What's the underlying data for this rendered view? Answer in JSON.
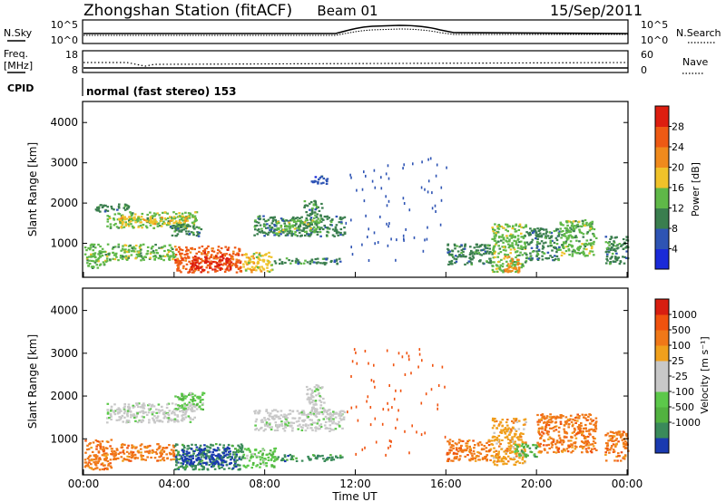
{
  "header": {
    "title": "Zhongshan Station (fitACF)",
    "beam": "Beam 01",
    "date": "15/Sep/2011"
  },
  "top_panel": {
    "left_label": "N.Sky",
    "left_ticks": [
      "10^5",
      "10^0"
    ],
    "right_ticks": [
      "10^5",
      "10^0"
    ],
    "right_label": "N.Search"
  },
  "freq_panel": {
    "left_label_1": "Freq.",
    "left_label_2": "[MHz]",
    "left_ticks": [
      "18",
      "8"
    ],
    "right_ticks": [
      "60",
      "0"
    ],
    "right_label": "Nave"
  },
  "cpid": {
    "label": "CPID",
    "value": "normal (fast stereo) 153"
  },
  "axes": {
    "ylabel": "Slant Range [km]",
    "yticks": [
      "1000",
      "2000",
      "3000",
      "4000"
    ],
    "ytick_values": [
      1000,
      2000,
      3000,
      4000
    ],
    "ylim": [
      180,
      4500
    ],
    "xlabel": "Time UT",
    "xticks": [
      "00:00",
      "04:00",
      "08:00",
      "12:00",
      "16:00",
      "20:00",
      "00:00"
    ],
    "xtick_values": [
      0,
      4,
      8,
      12,
      16,
      20,
      24
    ],
    "xlim": [
      0,
      24
    ]
  },
  "colorbars": {
    "power": {
      "label": "Power [dB]",
      "ticks": [
        "4",
        "8",
        "12",
        "16",
        "20",
        "24",
        "28"
      ],
      "colors": [
        "#1a2ad8",
        "#2e54b4",
        "#3a7e4e",
        "#5fb848",
        "#f0c22a",
        "#f08a1c",
        "#ee5a14",
        "#dd1e10"
      ]
    },
    "velocity": {
      "label": "Velocity [m s⁻¹]",
      "ticks": [
        "1000",
        "500",
        "100",
        "25",
        "-25",
        "-100",
        "-500",
        "-1000"
      ],
      "colors": [
        "#1a3ab0",
        "#3a8a5a",
        "#52b240",
        "#5cc84a",
        "#c8c8c8",
        "#c8c8c8",
        "#f0a01c",
        "#f07818",
        "#f0520e",
        "#d81e10"
      ]
    }
  },
  "chart_data": [
    {
      "type": "heatmap",
      "name": "power",
      "xlabel": "Time UT",
      "ylabel": "Slant Range [km]",
      "x_unit": "hours UT",
      "xlim": [
        0,
        24
      ],
      "ylim": [
        180,
        4500
      ],
      "colorbar_label": "Power [dB]",
      "patches": [
        {
          "t0": 0.0,
          "t1": 1.0,
          "r0": 400,
          "r1": 1000,
          "level": 3
        },
        {
          "t0": 1.0,
          "t1": 4.0,
          "r0": 600,
          "r1": 1000,
          "level": 3
        },
        {
          "t0": 4.0,
          "t1": 7.0,
          "r0": 300,
          "r1": 950,
          "level": 6
        },
        {
          "t0": 4.7,
          "t1": 6.5,
          "r0": 350,
          "r1": 700,
          "level": 7
        },
        {
          "t0": 7.0,
          "t1": 8.4,
          "r0": 300,
          "r1": 800,
          "level": 4
        },
        {
          "t0": 8.4,
          "t1": 11.3,
          "r0": 500,
          "r1": 650,
          "level": 2
        },
        {
          "t0": 1.0,
          "t1": 5.0,
          "r0": 1400,
          "r1": 1800,
          "level": 3
        },
        {
          "t0": 1.5,
          "t1": 4.5,
          "r0": 1500,
          "r1": 1700,
          "level": 4
        },
        {
          "t0": 3.8,
          "t1": 5.2,
          "r0": 1200,
          "r1": 1500,
          "level": 2
        },
        {
          "t0": 0.5,
          "t1": 2.0,
          "r0": 1800,
          "r1": 2000,
          "level": 2
        },
        {
          "t0": 7.5,
          "t1": 11.5,
          "r0": 1200,
          "r1": 1700,
          "level": 2
        },
        {
          "t0": 8.5,
          "t1": 10.5,
          "r0": 1300,
          "r1": 1600,
          "level": 3
        },
        {
          "t0": 9.7,
          "t1": 10.5,
          "r0": 1700,
          "r1": 2100,
          "level": 2
        },
        {
          "t0": 10.0,
          "t1": 10.8,
          "r0": 2500,
          "r1": 2700,
          "level": 1
        },
        {
          "t0": 16.0,
          "t1": 18.0,
          "r0": 500,
          "r1": 1000,
          "level": 2
        },
        {
          "t0": 18.0,
          "t1": 19.5,
          "r0": 300,
          "r1": 1500,
          "level": 3
        },
        {
          "t0": 18.5,
          "t1": 19.2,
          "r0": 300,
          "r1": 700,
          "level": 5
        },
        {
          "t0": 19.5,
          "t1": 21.0,
          "r0": 600,
          "r1": 1400,
          "level": 2
        },
        {
          "t0": 21.0,
          "t1": 22.6,
          "r0": 700,
          "r1": 1600,
          "level": 3
        },
        {
          "t0": 23.0,
          "t1": 24.0,
          "r0": 500,
          "r1": 1200,
          "level": 2
        }
      ]
    },
    {
      "type": "heatmap",
      "name": "velocity",
      "xlabel": "Time UT",
      "ylabel": "Slant Range [km]",
      "x_unit": "hours UT",
      "xlim": [
        0,
        24
      ],
      "ylim": [
        180,
        4500
      ],
      "colorbar_label": "Velocity [m s⁻¹]",
      "patches": [
        {
          "t0": 0.0,
          "t1": 1.2,
          "r0": 300,
          "r1": 1000,
          "level": 7
        },
        {
          "t0": 1.2,
          "t1": 4.0,
          "r0": 500,
          "r1": 900,
          "level": 7
        },
        {
          "t0": 4.0,
          "t1": 7.0,
          "r0": 300,
          "r1": 900,
          "level": 1
        },
        {
          "t0": 4.3,
          "t1": 6.5,
          "r0": 400,
          "r1": 800,
          "level": 0
        },
        {
          "t0": 7.0,
          "t1": 8.5,
          "r0": 350,
          "r1": 800,
          "level": 3
        },
        {
          "t0": 8.5,
          "t1": 11.5,
          "r0": 500,
          "r1": 650,
          "level": 1
        },
        {
          "t0": 1.0,
          "t1": 5.0,
          "r0": 1400,
          "r1": 1850,
          "level": 4
        },
        {
          "t0": 4.0,
          "t1": 5.3,
          "r0": 1700,
          "r1": 2100,
          "level": 3
        },
        {
          "t0": 7.5,
          "t1": 11.5,
          "r0": 1200,
          "r1": 1700,
          "level": 4
        },
        {
          "t0": 9.8,
          "t1": 10.6,
          "r0": 1700,
          "r1": 2300,
          "level": 4
        },
        {
          "t0": 16.0,
          "t1": 18.0,
          "r0": 500,
          "r1": 1000,
          "level": 7
        },
        {
          "t0": 18.0,
          "t1": 19.5,
          "r0": 400,
          "r1": 1500,
          "level": 6
        },
        {
          "t0": 19.0,
          "t1": 20.0,
          "r0": 600,
          "r1": 900,
          "level": 2
        },
        {
          "t0": 20.0,
          "t1": 22.6,
          "r0": 700,
          "r1": 1600,
          "level": 7
        },
        {
          "t0": 23.0,
          "t1": 24.0,
          "r0": 500,
          "r1": 1200,
          "level": 7
        }
      ]
    }
  ]
}
